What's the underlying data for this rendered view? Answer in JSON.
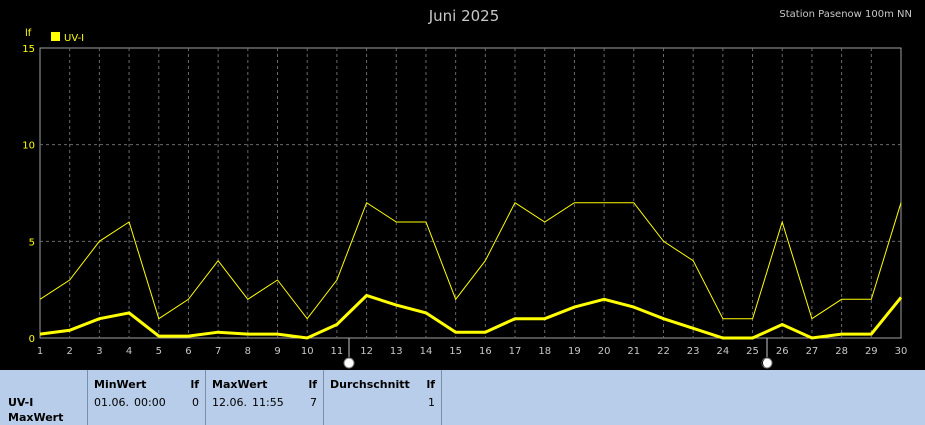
{
  "title": "Juni 2025",
  "station": "Station Pasenow 100m NN",
  "chart_data": {
    "type": "line",
    "unit_label": "lf",
    "x": [
      1,
      2,
      3,
      4,
      5,
      6,
      7,
      8,
      9,
      10,
      11,
      12,
      13,
      14,
      15,
      16,
      17,
      18,
      19,
      20,
      21,
      22,
      23,
      24,
      25,
      26,
      27,
      28,
      29,
      30
    ],
    "xlim": [
      1,
      30
    ],
    "ylim": [
      0,
      15
    ],
    "yticks": [
      0,
      5,
      10,
      15
    ],
    "grid": true,
    "legend": "top-left",
    "series": [
      {
        "name": "UV-I",
        "color": "#ffff00",
        "style": "thin",
        "values": [
          2,
          3,
          5,
          6,
          1,
          2,
          4,
          2,
          3,
          1,
          3,
          7,
          6,
          6,
          2,
          4,
          7,
          6,
          7,
          7,
          7,
          5,
          4,
          1,
          1,
          6,
          1,
          2,
          2,
          7
        ]
      },
      {
        "color": "#ffff00",
        "style": "bold",
        "values": [
          0.2,
          0.4,
          1.0,
          1.3,
          0.1,
          0.1,
          0.3,
          0.2,
          0.2,
          0.0,
          0.7,
          2.2,
          1.7,
          1.3,
          0.3,
          0.3,
          1.0,
          1.0,
          1.6,
          2.0,
          1.6,
          1.0,
          0.5,
          0.0,
          0.0,
          0.7,
          0.0,
          0.2,
          0.2,
          2.1
        ]
      }
    ]
  },
  "marker_icons": [
    "sun-icon",
    "moon-icon"
  ],
  "summary": {
    "label_line1": "UV-I",
    "label_line2": "MaxWert",
    "min": {
      "header": "MinWert",
      "unit": "lf",
      "date": "01.06.",
      "time": "00:00",
      "value": "0"
    },
    "max": {
      "header": "MaxWert",
      "unit": "lf",
      "date": "12.06.",
      "time": "11:55",
      "value": "7"
    },
    "avg": {
      "header": "Durchschnitt",
      "unit": "lf",
      "value": "1"
    }
  }
}
